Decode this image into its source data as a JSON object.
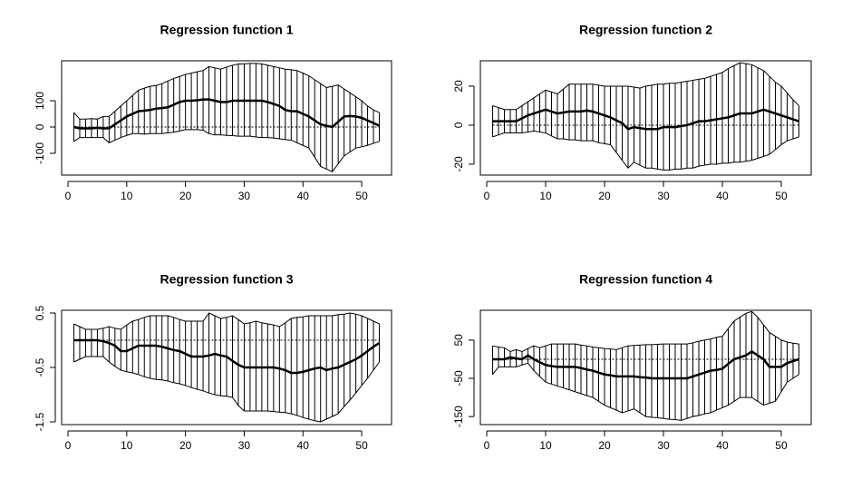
{
  "chart_data": [
    {
      "type": "band",
      "title": "Regression function  1",
      "x": [
        1,
        2,
        3,
        4,
        5,
        6,
        7,
        8,
        9,
        10,
        11,
        12,
        13,
        14,
        15,
        16,
        17,
        18,
        19,
        20,
        21,
        22,
        23,
        24,
        25,
        26,
        27,
        28,
        29,
        30,
        31,
        32,
        33,
        34,
        35,
        36,
        37,
        38,
        39,
        40,
        41,
        42,
        43,
        44,
        45,
        46,
        47,
        48,
        49,
        50,
        51,
        52,
        53
      ],
      "series": [
        {
          "color": "#000000",
          "values": [
            0,
            -5,
            -5,
            -5,
            -3,
            -5,
            -5,
            10,
            25,
            40,
            50,
            60,
            62,
            65,
            70,
            72,
            75,
            85,
            95,
            100,
            100,
            102,
            105,
            105,
            100,
            95,
            95,
            100,
            100,
            100,
            100,
            100,
            100,
            95,
            88,
            80,
            65,
            60,
            60,
            50,
            40,
            25,
            10,
            5,
            0,
            20,
            40,
            42,
            40,
            35,
            25,
            15,
            5
          ]
        },
        {
          "color": "#000000",
          "values": [
            55,
            30,
            30,
            32,
            30,
            40,
            40,
            60,
            80,
            100,
            120,
            140,
            148,
            155,
            158,
            165,
            175,
            185,
            192,
            200,
            205,
            210,
            215,
            230,
            225,
            220,
            228,
            235,
            240,
            240,
            242,
            242,
            240,
            235,
            230,
            225,
            220,
            218,
            215,
            205,
            195,
            180,
            165,
            150,
            155,
            160,
            145,
            130,
            115,
            100,
            80,
            65,
            55
          ]
        },
        {
          "color": "#000000",
          "values": [
            -55,
            -40,
            -40,
            -40,
            -40,
            -40,
            -60,
            -50,
            -40,
            -32,
            -25,
            -25,
            -27,
            -25,
            -25,
            -25,
            -22,
            -20,
            -15,
            -10,
            -10,
            -10,
            -12,
            -25,
            -30,
            -30,
            -32,
            -33,
            -35,
            -35,
            -35,
            -38,
            -40,
            -40,
            -42,
            -45,
            -48,
            -50,
            -60,
            -70,
            -80,
            -115,
            -150,
            -160,
            -170,
            -140,
            -110,
            -95,
            -80,
            -75,
            -70,
            -62,
            -55
          ]
        }
      ],
      "hline": 0,
      "xlim": [
        -1.08,
        55.08
      ],
      "xticks": [
        0,
        10,
        20,
        30,
        40,
        50
      ],
      "ylim": [
        -183,
        252
      ],
      "yticks": [
        -100,
        0,
        100
      ]
    },
    {
      "type": "band",
      "title": "Regression function  2",
      "x": [
        1,
        2,
        3,
        4,
        5,
        6,
        7,
        8,
        9,
        10,
        11,
        12,
        13,
        14,
        15,
        16,
        17,
        18,
        19,
        20,
        21,
        22,
        23,
        24,
        25,
        26,
        27,
        28,
        29,
        30,
        31,
        32,
        33,
        34,
        35,
        36,
        37,
        38,
        39,
        40,
        41,
        42,
        43,
        44,
        45,
        46,
        47,
        48,
        49,
        50,
        51,
        52,
        53
      ],
      "series": [
        {
          "color": "#000000",
          "values": [
            2,
            2,
            2,
            2,
            2,
            3.5,
            5,
            6,
            7,
            8,
            7,
            6,
            6.5,
            7,
            7,
            7,
            7.5,
            7,
            6,
            5,
            4,
            2.5,
            1,
            -2,
            -1,
            -1.5,
            -2,
            -2,
            -2,
            -1,
            -1,
            -1,
            -0.5,
            0,
            1,
            2,
            2,
            2.5,
            3,
            3.5,
            4,
            5,
            6,
            6,
            6,
            7,
            8,
            7,
            6,
            5,
            4,
            3,
            2
          ]
        },
        {
          "color": "#000000",
          "values": [
            10,
            9,
            8,
            8,
            8,
            10,
            12,
            14,
            16,
            18,
            17,
            16,
            18.5,
            21,
            21,
            21,
            21,
            21,
            20.5,
            20,
            20,
            20,
            20,
            20,
            19.5,
            19,
            20,
            20.5,
            21,
            21,
            21.5,
            21.5,
            22,
            22.5,
            23,
            23.5,
            24,
            25,
            26,
            27,
            29,
            30.5,
            32,
            31.5,
            31,
            29.5,
            28,
            25,
            22,
            20,
            16.5,
            13,
            10
          ]
        },
        {
          "color": "#000000",
          "values": [
            -6,
            -5,
            -4,
            -4,
            -4,
            -4,
            -3.5,
            -3,
            -3.5,
            -4,
            -5.5,
            -7,
            -7,
            -7.5,
            -7.5,
            -8,
            -8,
            -8,
            -9,
            -9.5,
            -10,
            -14,
            -18,
            -22,
            -19,
            -20.5,
            -22,
            -22,
            -22.5,
            -23,
            -23,
            -22.5,
            -22.5,
            -22,
            -22,
            -21,
            -20.5,
            -20,
            -20,
            -19.5,
            -19.5,
            -19,
            -19,
            -18.5,
            -18,
            -17,
            -16,
            -15,
            -12.5,
            -10,
            -8,
            -7,
            -6
          ]
        }
      ],
      "hline": 0,
      "xlim": [
        -1.08,
        55.08
      ],
      "xticks": [
        0,
        10,
        20,
        30,
        40,
        50
      ],
      "ylim": [
        -25.6,
        33
      ],
      "yticks": [
        -20,
        0,
        20
      ]
    },
    {
      "type": "band",
      "title": "Regression function  3",
      "x": [
        1,
        2,
        3,
        4,
        5,
        6,
        7,
        8,
        9,
        10,
        11,
        12,
        13,
        14,
        15,
        16,
        17,
        18,
        19,
        20,
        21,
        22,
        23,
        24,
        25,
        26,
        27,
        28,
        29,
        30,
        31,
        32,
        33,
        34,
        35,
        36,
        37,
        38,
        39,
        40,
        41,
        42,
        43,
        44,
        45,
        46,
        47,
        48,
        49,
        50,
        51,
        52,
        53
      ],
      "series": [
        {
          "color": "#000000",
          "values": [
            0,
            0,
            0,
            0,
            0,
            -0.02,
            -0.05,
            -0.1,
            -0.2,
            -0.2,
            -0.15,
            -0.1,
            -0.1,
            -0.1,
            -0.1,
            -0.12,
            -0.15,
            -0.18,
            -0.2,
            -0.25,
            -0.3,
            -0.3,
            -0.3,
            -0.28,
            -0.25,
            -0.28,
            -0.3,
            -0.38,
            -0.45,
            -0.5,
            -0.5,
            -0.5,
            -0.5,
            -0.5,
            -0.5,
            -0.52,
            -0.55,
            -0.6,
            -0.6,
            -0.58,
            -0.55,
            -0.52,
            -0.5,
            -0.55,
            -0.52,
            -0.5,
            -0.45,
            -0.4,
            -0.35,
            -0.28,
            -0.2,
            -0.12,
            -0.05
          ]
        },
        {
          "color": "#000000",
          "values": [
            0.3,
            0.25,
            0.2,
            0.2,
            0.2,
            0.22,
            0.25,
            0.22,
            0.2,
            0.28,
            0.35,
            0.38,
            0.42,
            0.45,
            0.45,
            0.45,
            0.45,
            0.42,
            0.38,
            0.35,
            0.35,
            0.35,
            0.35,
            0.5,
            0.45,
            0.4,
            0.42,
            0.45,
            0.38,
            0.3,
            0.32,
            0.35,
            0.32,
            0.3,
            0.28,
            0.25,
            0.32,
            0.4,
            0.42,
            0.43,
            0.45,
            0.45,
            0.45,
            0.45,
            0.45,
            0.47,
            0.48,
            0.5,
            0.48,
            0.45,
            0.4,
            0.35,
            0.3
          ]
        },
        {
          "color": "#000000",
          "values": [
            -0.4,
            -0.35,
            -0.3,
            -0.3,
            -0.3,
            -0.3,
            -0.4,
            -0.48,
            -0.55,
            -0.58,
            -0.6,
            -0.63,
            -0.67,
            -0.7,
            -0.72,
            -0.73,
            -0.75,
            -0.78,
            -0.8,
            -0.83,
            -0.87,
            -0.9,
            -0.93,
            -0.97,
            -1.0,
            -1.02,
            -1.03,
            -1.05,
            -1.2,
            -1.3,
            -1.3,
            -1.3,
            -1.3,
            -1.3,
            -1.31,
            -1.32,
            -1.33,
            -1.35,
            -1.38,
            -1.42,
            -1.45,
            -1.48,
            -1.5,
            -1.45,
            -1.4,
            -1.35,
            -1.22,
            -1.1,
            -0.97,
            -0.83,
            -0.7,
            -0.55,
            -0.4
          ]
        }
      ],
      "hline": 0,
      "xlim": [
        -1.08,
        55.08
      ],
      "xticks": [
        0,
        10,
        20,
        30,
        40,
        50
      ],
      "ylim": [
        -1.55,
        0.55
      ],
      "yticks": [
        -1.5,
        -0.5,
        0.5
      ]
    },
    {
      "type": "band",
      "title": "Regression function  4",
      "x": [
        1,
        2,
        3,
        4,
        5,
        6,
        7,
        8,
        9,
        10,
        11,
        12,
        13,
        14,
        15,
        16,
        17,
        18,
        19,
        20,
        21,
        22,
        23,
        24,
        25,
        26,
        27,
        28,
        29,
        30,
        31,
        32,
        33,
        34,
        35,
        36,
        37,
        38,
        39,
        40,
        41,
        42,
        43,
        44,
        45,
        46,
        47,
        48,
        49,
        50,
        51,
        52,
        53
      ],
      "series": [
        {
          "color": "#000000",
          "values": [
            0,
            0,
            0,
            5,
            2,
            0,
            10,
            0,
            -8,
            -15,
            -18,
            -20,
            -20,
            -20,
            -20,
            -23,
            -27,
            -30,
            -35,
            -40,
            -42,
            -45,
            -45,
            -45,
            -45,
            -47,
            -48,
            -50,
            -50,
            -50,
            -50,
            -50,
            -50,
            -50,
            -45,
            -40,
            -35,
            -30,
            -28,
            -25,
            -12,
            0,
            5,
            10,
            20,
            10,
            0,
            -20,
            -20,
            -20,
            -10,
            -5,
            0
          ]
        },
        {
          "color": "#000000",
          "values": [
            35,
            32,
            30,
            20,
            25,
            20,
            28,
            35,
            30,
            35,
            40,
            40,
            40,
            40,
            40,
            37,
            35,
            32,
            30,
            28,
            27,
            25,
            30,
            35,
            36,
            37,
            38,
            38,
            39,
            40,
            40,
            40,
            40,
            40,
            43,
            47,
            50,
            53,
            57,
            60,
            80,
            100,
            110,
            120,
            125,
            110,
            90,
            70,
            60,
            50,
            45,
            42,
            40
          ]
        },
        {
          "color": "#000000",
          "values": [
            -40,
            -20,
            -20,
            -20,
            -20,
            -15,
            -10,
            -30,
            -45,
            -60,
            -65,
            -70,
            -75,
            -80,
            -85,
            -90,
            -95,
            -100,
            -110,
            -120,
            -127,
            -133,
            -140,
            -135,
            -130,
            -140,
            -150,
            -152,
            -153,
            -155,
            -157,
            -158,
            -160,
            -155,
            -150,
            -147,
            -143,
            -140,
            -133,
            -127,
            -120,
            -110,
            -100,
            -100,
            -100,
            -110,
            -120,
            -115,
            -110,
            -85,
            -60,
            -50,
            -40
          ]
        }
      ],
      "hline": 0,
      "xlim": [
        -1.08,
        55.08
      ],
      "xticks": [
        0,
        10,
        20,
        30,
        40,
        50
      ],
      "ylim": [
        -171,
        128
      ],
      "yticks": [
        -150,
        -50,
        50
      ]
    }
  ]
}
